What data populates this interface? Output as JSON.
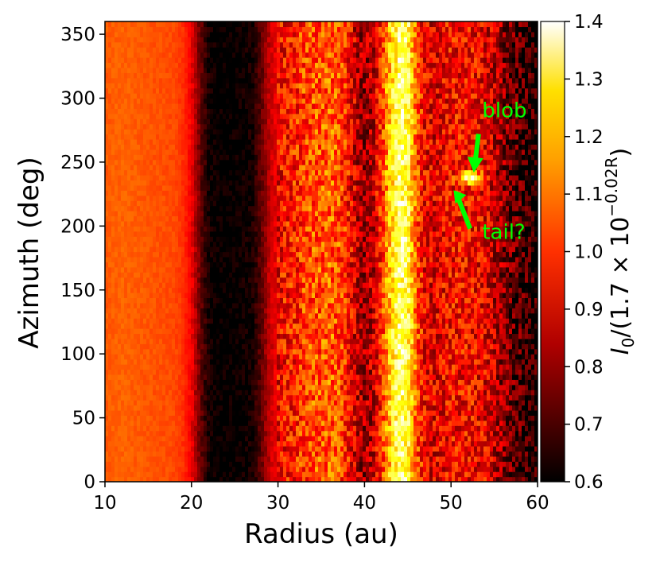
{
  "chart_data": {
    "type": "heatmap",
    "xlabel": "Radius (au)",
    "ylabel": "Azimuth (deg)",
    "xlim": [
      10,
      60
    ],
    "ylim": [
      0,
      360
    ],
    "xticks": [
      "10",
      "20",
      "30",
      "40",
      "50",
      "60"
    ],
    "yticks": [
      "0",
      "50",
      "100",
      "150",
      "200",
      "250",
      "300",
      "350"
    ],
    "colormap": "hot",
    "colorbar": {
      "label_main": "I",
      "label_sub": "0",
      "label_rest": "/(1.7 × 10",
      "label_exp": "−0.02R",
      "label_close": ")",
      "range": [
        0.6,
        1.4
      ],
      "ticks": [
        "0.6",
        "0.7",
        "0.8",
        "0.9",
        "1.0",
        "1.1",
        "1.2",
        "1.3",
        "1.4"
      ]
    },
    "radial_profile": {
      "radius_au": [
        10,
        12,
        14,
        16,
        18,
        19,
        20,
        21,
        22,
        23,
        25,
        27,
        28,
        29,
        30,
        31,
        32,
        33,
        34,
        35,
        36,
        37,
        38,
        39,
        40,
        41,
        42,
        43,
        44,
        45,
        46,
        47,
        48,
        49,
        50,
        52,
        54,
        55,
        56,
        57,
        58,
        59,
        60
      ],
      "intensity": [
        1.0,
        1.01,
        1.0,
        0.99,
        0.98,
        0.95,
        0.88,
        0.72,
        0.62,
        0.6,
        0.6,
        0.62,
        0.7,
        0.82,
        0.88,
        0.91,
        0.93,
        0.97,
        0.99,
        1.0,
        1.01,
        0.99,
        0.93,
        0.83,
        0.77,
        0.82,
        0.95,
        1.15,
        1.3,
        1.25,
        1.0,
        0.88,
        0.86,
        0.88,
        0.9,
        0.9,
        0.87,
        0.82,
        0.76,
        0.72,
        0.68,
        0.65,
        0.63
      ]
    },
    "annotations": [
      {
        "text": "blob",
        "radius_au": 52.3,
        "azimuth_deg": 238,
        "color": "#00ff00"
      },
      {
        "text": "tail?",
        "radius_au": 50.5,
        "azimuth_deg": 225,
        "color": "#00ff00"
      }
    ]
  }
}
